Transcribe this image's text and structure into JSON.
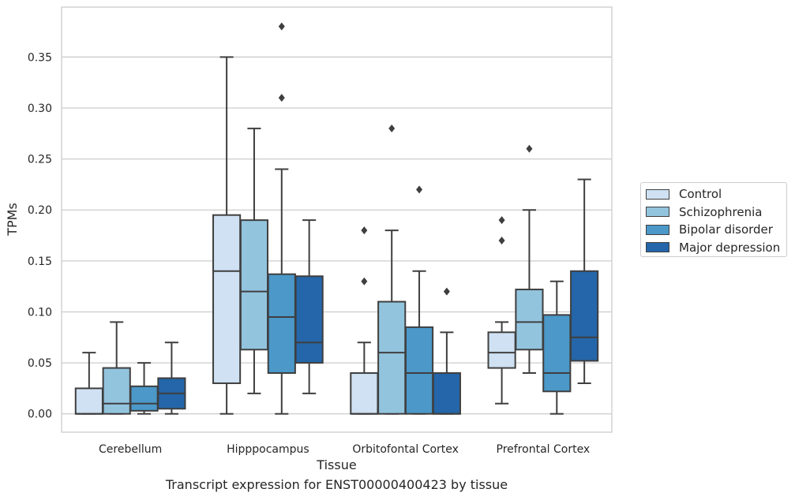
{
  "caption": "Transcript expression for ENST00000400423 by tissue",
  "chart_data": {
    "type": "box",
    "xlabel": "Tissue",
    "ylabel": "TPMs",
    "ylim": [
      -0.018,
      0.399
    ],
    "yticks": [
      "0.00",
      "0.05",
      "0.10",
      "0.15",
      "0.20",
      "0.25",
      "0.30",
      "0.35"
    ],
    "ytick_values": [
      0,
      0.05,
      0.1,
      0.15,
      0.2,
      0.25,
      0.3,
      0.35
    ],
    "grid": "horizontal",
    "legend_position": "right",
    "categories": [
      "Cerebellum",
      "Hipppocampus",
      "Orbitofontal Cortex",
      "Prefrontal Cortex"
    ],
    "series": [
      {
        "name": "Control",
        "color": "#cfe1f2",
        "boxes": [
          {
            "whislo": 0.0,
            "q1": 0.0,
            "med": 0.0,
            "q3": 0.025,
            "whishi": 0.06,
            "fliers": []
          },
          {
            "whislo": 0.0,
            "q1": 0.03,
            "med": 0.14,
            "q3": 0.195,
            "whishi": 0.35,
            "fliers": []
          },
          {
            "whislo": 0.0,
            "q1": 0.0,
            "med": 0.0,
            "q3": 0.04,
            "whishi": 0.07,
            "fliers": [
              0.13,
              0.18
            ]
          },
          {
            "whislo": 0.01,
            "q1": 0.045,
            "med": 0.06,
            "q3": 0.08,
            "whishi": 0.09,
            "fliers": [
              0.17,
              0.19
            ]
          }
        ]
      },
      {
        "name": "Schizophrenia",
        "color": "#93c4de",
        "boxes": [
          {
            "whislo": 0.0,
            "q1": 0.0,
            "med": 0.01,
            "q3": 0.045,
            "whishi": 0.09,
            "fliers": []
          },
          {
            "whislo": 0.02,
            "q1": 0.063,
            "med": 0.12,
            "q3": 0.19,
            "whishi": 0.28,
            "fliers": []
          },
          {
            "whislo": 0.0,
            "q1": 0.0,
            "med": 0.06,
            "q3": 0.11,
            "whishi": 0.18,
            "fliers": [
              0.28
            ]
          },
          {
            "whislo": 0.04,
            "q1": 0.063,
            "med": 0.09,
            "q3": 0.122,
            "whishi": 0.2,
            "fliers": [
              0.26
            ]
          }
        ]
      },
      {
        "name": "Bipolar disorder",
        "color": "#4b98c9",
        "boxes": [
          {
            "whislo": 0.0,
            "q1": 0.003,
            "med": 0.01,
            "q3": 0.027,
            "whishi": 0.05,
            "fliers": []
          },
          {
            "whislo": 0.0,
            "q1": 0.04,
            "med": 0.095,
            "q3": 0.137,
            "whishi": 0.24,
            "fliers": [
              0.31,
              0.38
            ]
          },
          {
            "whislo": 0.0,
            "q1": 0.0,
            "med": 0.04,
            "q3": 0.085,
            "whishi": 0.14,
            "fliers": [
              0.22
            ]
          },
          {
            "whislo": 0.0,
            "q1": 0.022,
            "med": 0.04,
            "q3": 0.097,
            "whishi": 0.13,
            "fliers": []
          }
        ]
      },
      {
        "name": "Major depression",
        "color": "#2466a9",
        "boxes": [
          {
            "whislo": 0.0,
            "q1": 0.005,
            "med": 0.02,
            "q3": 0.035,
            "whishi": 0.07,
            "fliers": []
          },
          {
            "whislo": 0.02,
            "q1": 0.05,
            "med": 0.07,
            "q3": 0.135,
            "whishi": 0.19,
            "fliers": []
          },
          {
            "whislo": 0.0,
            "q1": 0.0,
            "med": 0.0,
            "q3": 0.04,
            "whishi": 0.08,
            "fliers": [
              0.12
            ]
          },
          {
            "whislo": 0.03,
            "q1": 0.052,
            "med": 0.075,
            "q3": 0.14,
            "whishi": 0.23,
            "fliers": []
          }
        ]
      }
    ]
  }
}
